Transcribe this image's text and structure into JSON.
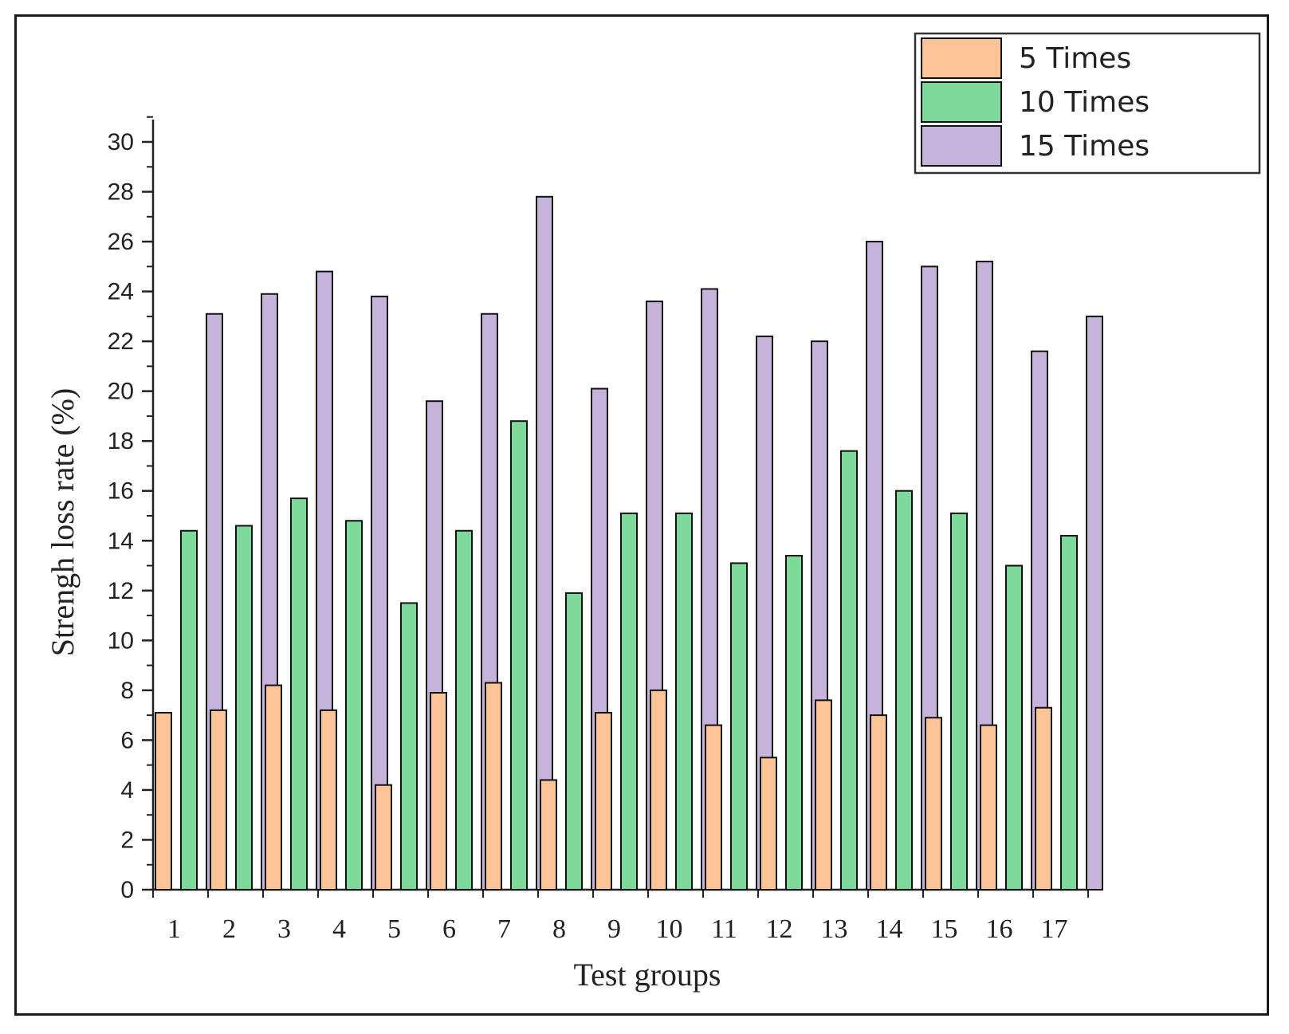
{
  "chart_data": {
    "type": "bar",
    "title": "",
    "xlabel": "Test groups",
    "ylabel": "Strengh loss rate (%)",
    "ylim": [
      0,
      30
    ],
    "yticks": [
      0,
      2,
      4,
      6,
      8,
      10,
      12,
      14,
      16,
      18,
      20,
      22,
      24,
      26,
      28,
      30
    ],
    "categories": [
      "1",
      "2",
      "3",
      "4",
      "5",
      "6",
      "7",
      "8",
      "9",
      "10",
      "11",
      "12",
      "13",
      "14",
      "15",
      "16",
      "17"
    ],
    "legend_position": "top-right",
    "series": [
      {
        "name": "5 Times",
        "color": "#FDC597",
        "values": [
          7.1,
          7.2,
          8.2,
          7.2,
          4.2,
          7.9,
          8.3,
          4.4,
          7.1,
          8.0,
          6.6,
          5.3,
          7.6,
          7.0,
          6.9,
          6.6,
          7.3
        ]
      },
      {
        "name": "10 Times",
        "color": "#7DD99A",
        "values": [
          14.4,
          14.6,
          15.7,
          14.8,
          11.5,
          14.4,
          18.8,
          11.9,
          15.1,
          15.1,
          13.1,
          13.4,
          17.6,
          16.0,
          15.1,
          13.0,
          14.2
        ]
      },
      {
        "name": "15 Times",
        "color": "#C6B3DB",
        "values": [
          23.1,
          23.9,
          24.8,
          23.8,
          19.6,
          23.1,
          27.8,
          20.1,
          23.6,
          24.1,
          22.2,
          22.0,
          26.0,
          25.0,
          25.2,
          21.6,
          23.0
        ]
      }
    ]
  }
}
